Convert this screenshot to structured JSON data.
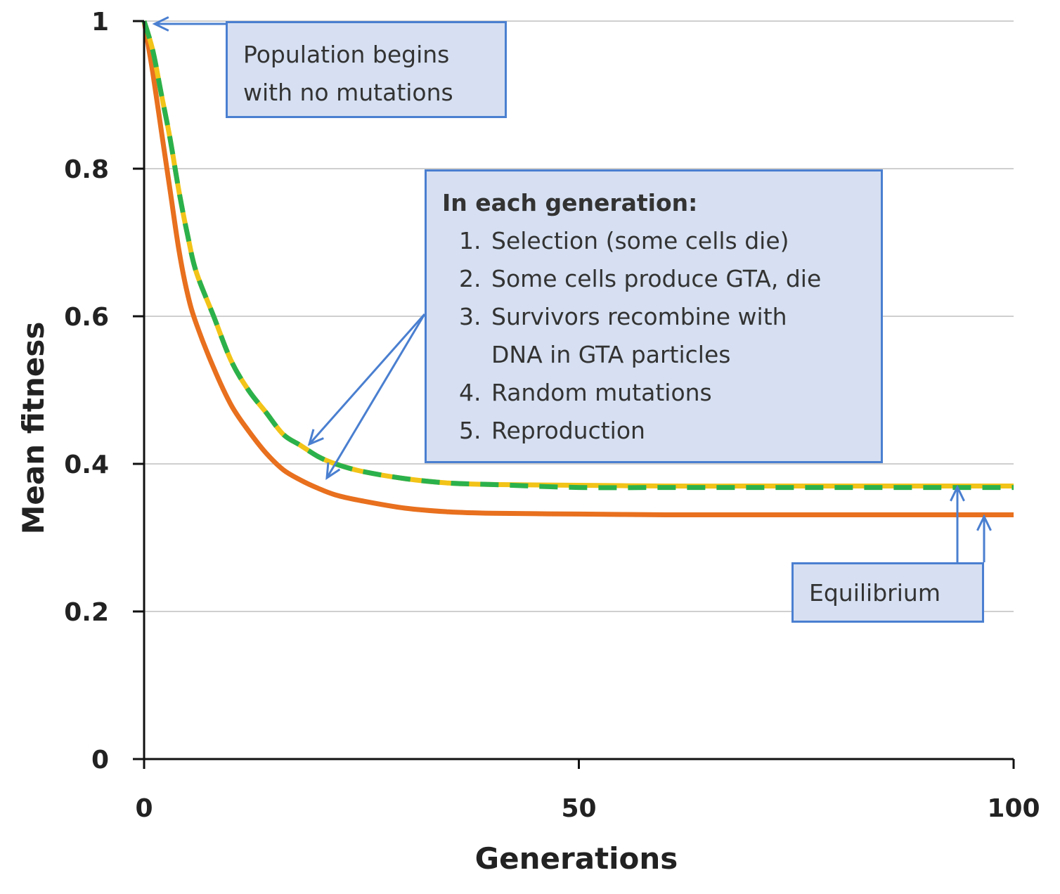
{
  "chart_data": {
    "type": "line",
    "title": "",
    "xlabel": "Generations",
    "ylabel": "Mean fitness",
    "xlim": [
      0,
      100
    ],
    "ylim": [
      0,
      1
    ],
    "xticks": [
      0,
      50,
      100
    ],
    "yticks": [
      0,
      0.2,
      0.4,
      0.6,
      0.8,
      1
    ],
    "xtick_labels": [
      "0",
      "50",
      "100"
    ],
    "ytick_labels": [
      "0",
      "0.2",
      "0.4",
      "0.6",
      "0.8",
      "1"
    ],
    "grid": "horizontal",
    "series": [
      {
        "name": "orange-solid",
        "color": "#e8701e",
        "style": "solid",
        "x": [
          0,
          1,
          2,
          3,
          4,
          5,
          6,
          8,
          10,
          12,
          14,
          16,
          18,
          20,
          22,
          25,
          30,
          35,
          40,
          50,
          60,
          70,
          80,
          90,
          100
        ],
        "y": [
          1.0,
          0.93,
          0.85,
          0.77,
          0.69,
          0.63,
          0.59,
          0.53,
          0.48,
          0.445,
          0.415,
          0.392,
          0.378,
          0.367,
          0.358,
          0.35,
          0.34,
          0.335,
          0.333,
          0.332,
          0.331,
          0.331,
          0.331,
          0.331,
          0.331
        ]
      },
      {
        "name": "yellow-solid",
        "color": "#f2c318",
        "style": "solid",
        "x": [
          0,
          1,
          2,
          3,
          4,
          5,
          6,
          8,
          10,
          12,
          14,
          16,
          18,
          20,
          22,
          25,
          30,
          35,
          40,
          50,
          60,
          70,
          80,
          90,
          100
        ],
        "y": [
          1.0,
          0.96,
          0.9,
          0.84,
          0.77,
          0.71,
          0.66,
          0.6,
          0.54,
          0.5,
          0.47,
          0.44,
          0.425,
          0.41,
          0.4,
          0.39,
          0.38,
          0.374,
          0.372,
          0.371,
          0.37,
          0.37,
          0.37,
          0.37,
          0.37
        ]
      },
      {
        "name": "green-dashed",
        "color": "#2bb14c",
        "style": "dashed",
        "x": [
          0,
          1,
          2,
          3,
          4,
          5,
          6,
          8,
          10,
          12,
          14,
          16,
          18,
          20,
          22,
          25,
          30,
          35,
          40,
          50,
          60,
          70,
          80,
          90,
          100
        ],
        "y": [
          1.0,
          0.96,
          0.9,
          0.84,
          0.77,
          0.71,
          0.66,
          0.6,
          0.54,
          0.5,
          0.47,
          0.44,
          0.425,
          0.41,
          0.4,
          0.39,
          0.38,
          0.374,
          0.372,
          0.368,
          0.368,
          0.368,
          0.368,
          0.368,
          0.368
        ]
      }
    ],
    "annotations": {
      "start": "Population begins with no mutations",
      "steps_title": "In each generation:",
      "steps": [
        "Selection (some cells die)",
        "Some cells produce GTA, die",
        "Survivors recombine with DNA in GTA particles",
        "Random mutations",
        "Reproduction"
      ],
      "equilibrium": "Equilibrium"
    }
  },
  "ui": {
    "start_line1": "Population begins",
    "start_line2": "with no mutations",
    "steps_title": "In each generation:",
    "steps": [
      {
        "num": "1.",
        "text": "Selection (some cells die)"
      },
      {
        "num": "2.",
        "text": "Some cells produce GTA, die"
      },
      {
        "num": "3.",
        "text": "Survivors recombine with",
        "cont": "DNA in GTA particles"
      },
      {
        "num": "4.",
        "text": "Random mutations"
      },
      {
        "num": "5.",
        "text": "Reproduction"
      }
    ],
    "equilibrium": "Equilibrium",
    "arrow_color": "#4a7fd0"
  }
}
